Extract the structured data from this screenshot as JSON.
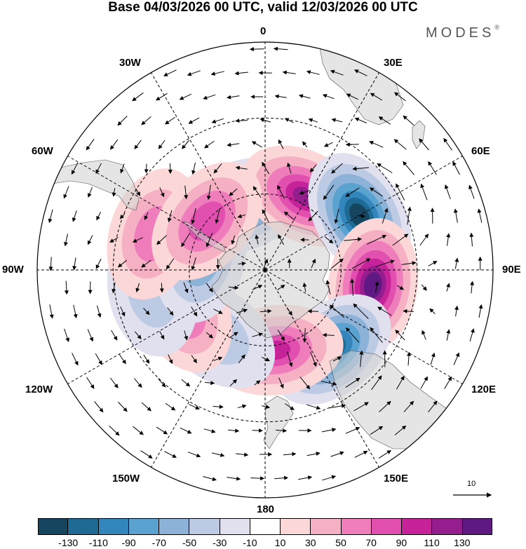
{
  "title": "Base 04/03/2026 00 UTC, valid 12/03/2026 00 UTC",
  "brand": "MODES",
  "brand_mark": "®",
  "longitude_labels": {
    "n": "0",
    "ne30": "30E",
    "e60": "60E",
    "e90": "90E",
    "e120": "120E",
    "e150": "150E",
    "s": "180",
    "w150": "150W",
    "w120": "120W",
    "w90": "90W",
    "w60": "60W",
    "w30": "30W"
  },
  "vector_scale_label": "10",
  "colorbar": {
    "colors": [
      "#16465f",
      "#1d6a94",
      "#3386bc",
      "#5aa2d0",
      "#8cb2d8",
      "#bccae3",
      "#e0e0ef",
      "#ffffff",
      "#fbd7d8",
      "#f5b0c4",
      "#ef7dbc",
      "#e150ae",
      "#c6239b",
      "#941e8d",
      "#5f1983"
    ],
    "ticks": [
      "-130",
      "-110",
      "-90",
      "-70",
      "-50",
      "-30",
      "-10",
      "10",
      "30",
      "50",
      "70",
      "90",
      "110",
      "130"
    ]
  },
  "anomaly_centers": [
    {
      "name": "trough-atlantic-30w",
      "lon": -20,
      "colat": 27,
      "value": -95
    },
    {
      "name": "ridge-southatlantic-20e",
      "lon": 28,
      "colat": 33,
      "value": 110
    },
    {
      "name": "trough-indian-55e",
      "lon": 60,
      "colat": 43,
      "value": -140
    },
    {
      "name": "ridge-indian-100e",
      "lon": 98,
      "colat": 43,
      "value": 140
    },
    {
      "name": "trough-australia-140e",
      "lon": 140,
      "colat": 41,
      "value": -125
    },
    {
      "name": "ridge-tasman-170e",
      "lon": 172,
      "colat": 32,
      "value": 90
    },
    {
      "name": "trough-pacific-140w",
      "lon": -142,
      "colat": 32,
      "value": -40
    },
    {
      "name": "ridge-pacific-115w",
      "lon": -115,
      "colat": 36,
      "value": 75
    },
    {
      "name": "trough-pacific-100w",
      "lon": -100,
      "colat": 45,
      "value": -40
    },
    {
      "name": "trough-drake-80w",
      "lon": -78,
      "colat": 26,
      "value": -70
    },
    {
      "name": "ridge-southamerica-75w",
      "lon": -72,
      "colat": 46,
      "value": 65
    },
    {
      "name": "ridge-southatlantic-50w",
      "lon": -50,
      "colat": 30,
      "value": 85
    }
  ]
}
